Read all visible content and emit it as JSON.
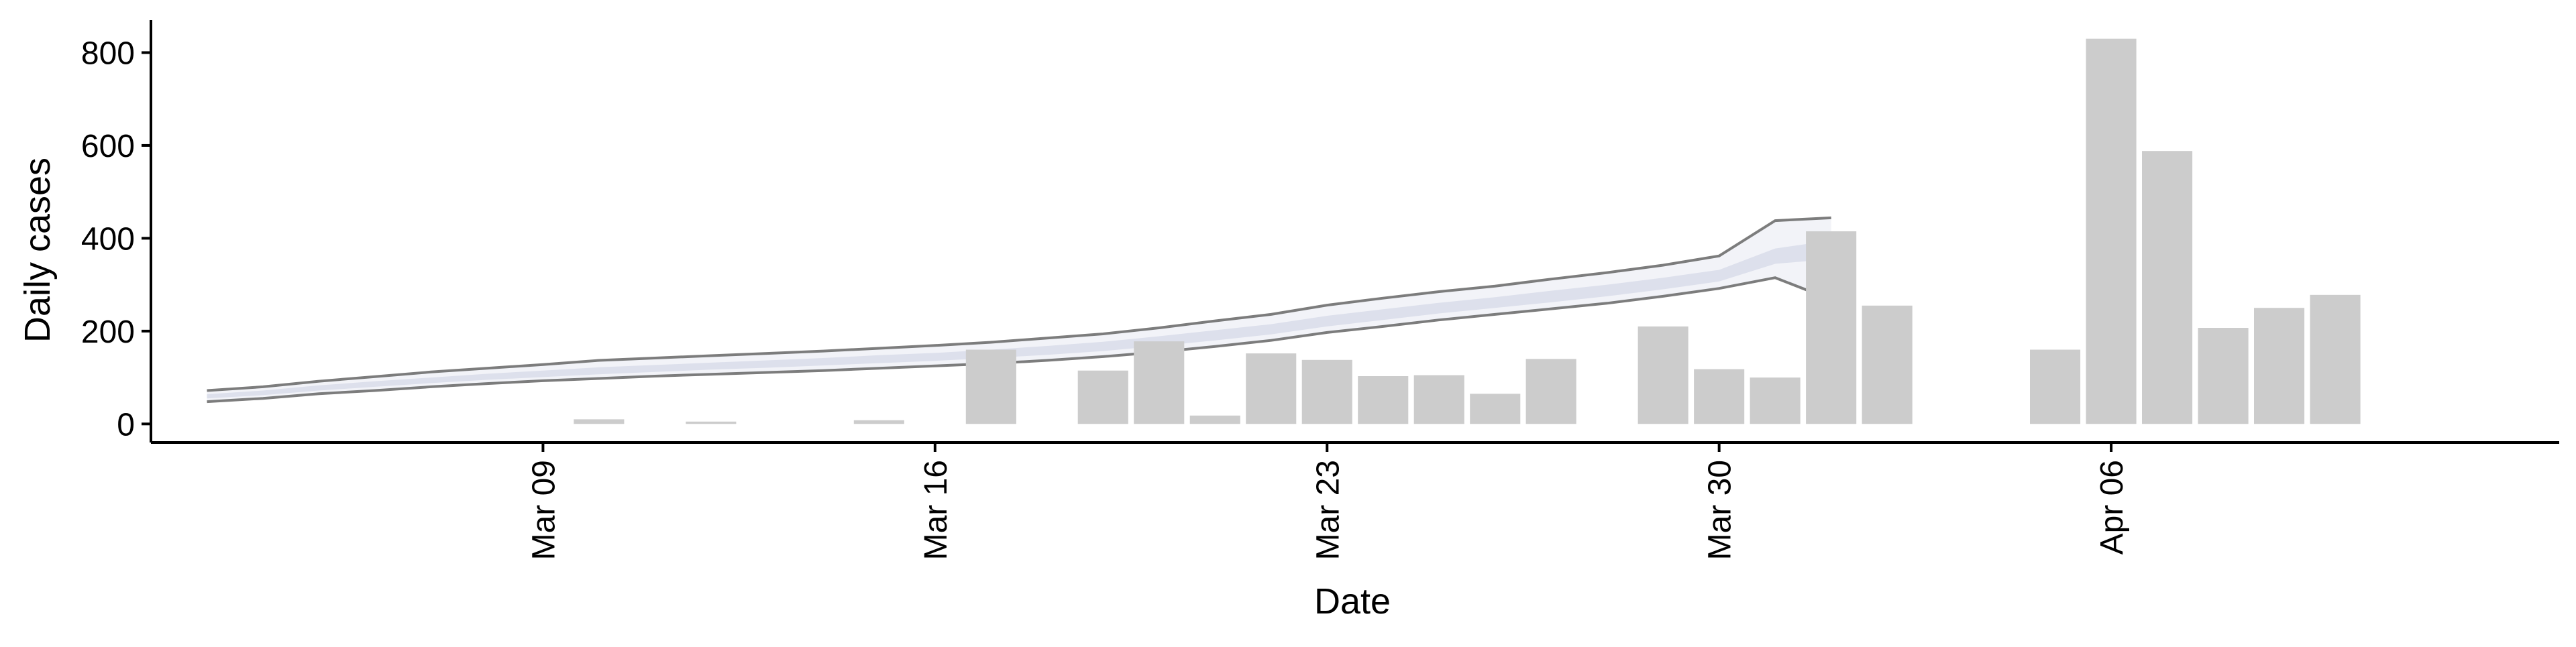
{
  "chart_data": {
    "type": "bar",
    "xlabel": "Date",
    "ylabel": "Daily cases",
    "ylim": [
      -40,
      870
    ],
    "xlim": [
      "2020-03-02",
      "2020-04-14"
    ],
    "grid": false,
    "colors": {
      "bars": "#cccccc",
      "band_outer": "#f2f3f8",
      "band_inner": "#dde0ec",
      "bound_lines": "#666666"
    },
    "y_ticks": [
      {
        "value": 0,
        "label": "0"
      },
      {
        "value": 200,
        "label": "200"
      },
      {
        "value": 400,
        "label": "400"
      },
      {
        "value": 600,
        "label": "600"
      },
      {
        "value": 800,
        "label": "800"
      }
    ],
    "x_ticks": [
      {
        "date": "2020-03-09",
        "label": "Mar 09"
      },
      {
        "date": "2020-03-16",
        "label": "Mar 16"
      },
      {
        "date": "2020-03-23",
        "label": "Mar 23"
      },
      {
        "date": "2020-03-30",
        "label": "Mar 30"
      },
      {
        "date": "2020-04-06",
        "label": "Apr 06"
      }
    ],
    "bars": [
      {
        "date": "2020-03-10",
        "value": 10
      },
      {
        "date": "2020-03-12",
        "value": 5
      },
      {
        "date": "2020-03-15",
        "value": 8
      },
      {
        "date": "2020-03-17",
        "value": 160
      },
      {
        "date": "2020-03-19",
        "value": 115
      },
      {
        "date": "2020-03-20",
        "value": 178
      },
      {
        "date": "2020-03-21",
        "value": 18
      },
      {
        "date": "2020-03-22",
        "value": 152
      },
      {
        "date": "2020-03-23",
        "value": 138
      },
      {
        "date": "2020-03-24",
        "value": 103
      },
      {
        "date": "2020-03-25",
        "value": 105
      },
      {
        "date": "2020-03-26",
        "value": 65
      },
      {
        "date": "2020-03-27",
        "value": 140
      },
      {
        "date": "2020-03-29",
        "value": 210
      },
      {
        "date": "2020-03-30",
        "value": 118
      },
      {
        "date": "2020-03-31",
        "value": 100
      },
      {
        "date": "2020-04-01",
        "value": 415
      },
      {
        "date": "2020-04-02",
        "value": 255
      },
      {
        "date": "2020-04-05",
        "value": 160
      },
      {
        "date": "2020-04-06",
        "value": 830
      },
      {
        "date": "2020-04-07",
        "value": 588
      },
      {
        "date": "2020-04-08",
        "value": 207
      },
      {
        "date": "2020-04-09",
        "value": 250
      },
      {
        "date": "2020-04-10",
        "value": 278
      }
    ],
    "band": {
      "dates": [
        "2020-03-03",
        "2020-03-04",
        "2020-03-05",
        "2020-03-06",
        "2020-03-07",
        "2020-03-08",
        "2020-03-09",
        "2020-03-10",
        "2020-03-11",
        "2020-03-12",
        "2020-03-13",
        "2020-03-14",
        "2020-03-15",
        "2020-03-16",
        "2020-03-17",
        "2020-03-18",
        "2020-03-19",
        "2020-03-20",
        "2020-03-21",
        "2020-03-22",
        "2020-03-23",
        "2020-03-24",
        "2020-03-25",
        "2020-03-26",
        "2020-03-27",
        "2020-03-28",
        "2020-03-29",
        "2020-03-30",
        "2020-03-31",
        "2020-04-01"
      ],
      "upper_outer": [
        72,
        80,
        92,
        102,
        112,
        120,
        128,
        137,
        142,
        147,
        152,
        157,
        163,
        169,
        176,
        185,
        194,
        207,
        222,
        236,
        256,
        271,
        285,
        297,
        312,
        326,
        342,
        362,
        438,
        444
      ],
      "upper_inner": [
        64,
        72,
        83,
        92,
        100,
        108,
        115,
        122,
        127,
        132,
        137,
        142,
        148,
        153,
        160,
        168,
        177,
        189,
        202,
        215,
        233,
        247,
        261,
        273,
        287,
        300,
        315,
        332,
        378,
        395
      ],
      "lower_inner": [
        55,
        62,
        72,
        80,
        88,
        95,
        101,
        107,
        112,
        117,
        121,
        126,
        131,
        136,
        142,
        149,
        157,
        168,
        180,
        193,
        210,
        224,
        238,
        250,
        262,
        275,
        290,
        307,
        345,
        355
      ],
      "lower_outer": [
        48,
        55,
        65,
        72,
        80,
        87,
        93,
        98,
        103,
        107,
        111,
        115,
        120,
        125,
        130,
        137,
        145,
        155,
        167,
        180,
        197,
        210,
        224,
        236,
        248,
        260,
        275,
        292,
        315,
        268
      ]
    }
  }
}
